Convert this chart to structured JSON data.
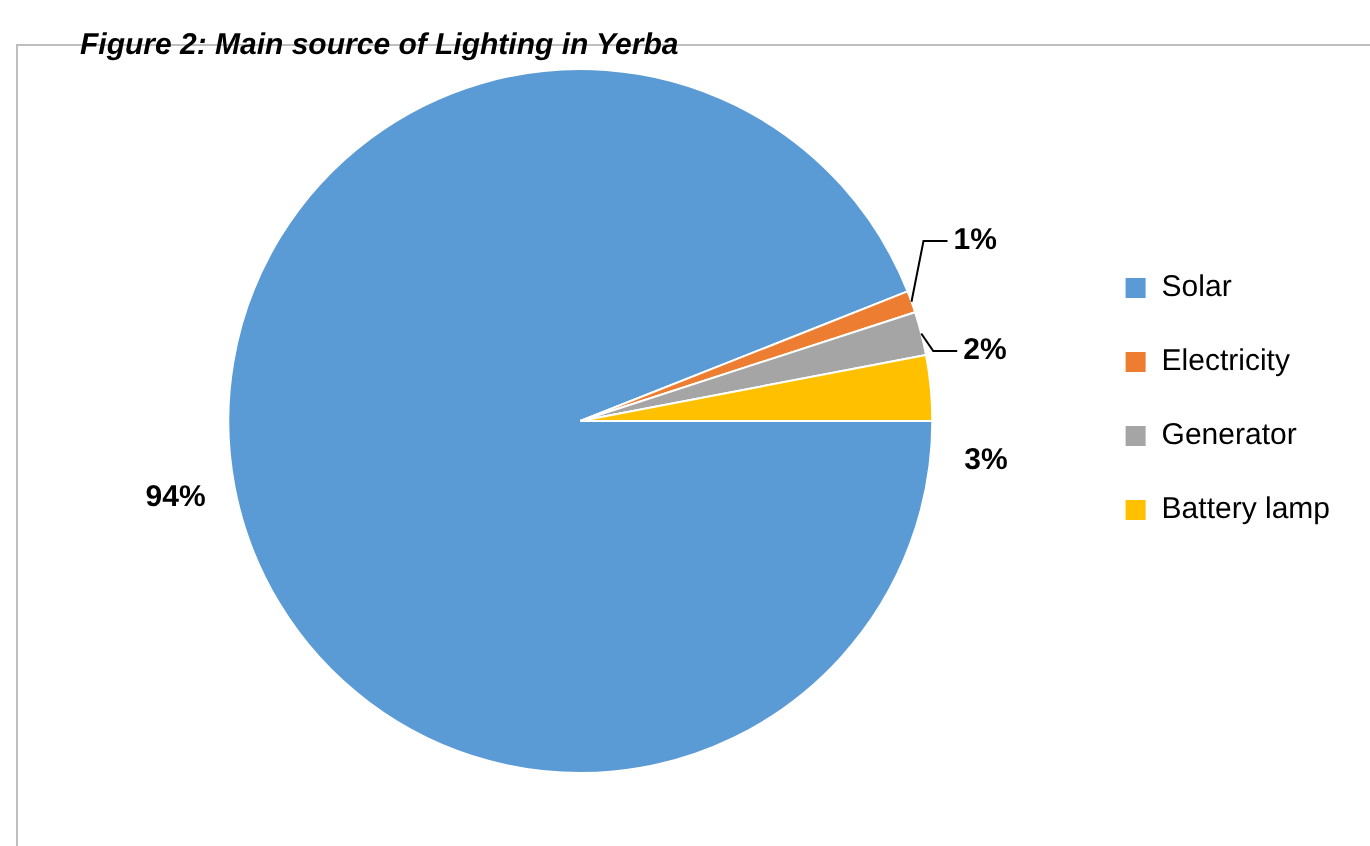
{
  "chart_data": {
    "type": "pie",
    "title": "Figure 2: Main source of Lighting in Yerba",
    "categories": [
      "Solar",
      "Electricity",
      "Generator",
      "Battery lamp"
    ],
    "values": [
      94,
      1,
      2,
      3
    ],
    "colors": [
      "#5b9bd5",
      "#ed7d31",
      "#a5a5a5",
      "#ffc000"
    ],
    "value_labels": [
      "94%",
      "1%",
      "2%",
      "3%"
    ],
    "legend": "right"
  }
}
